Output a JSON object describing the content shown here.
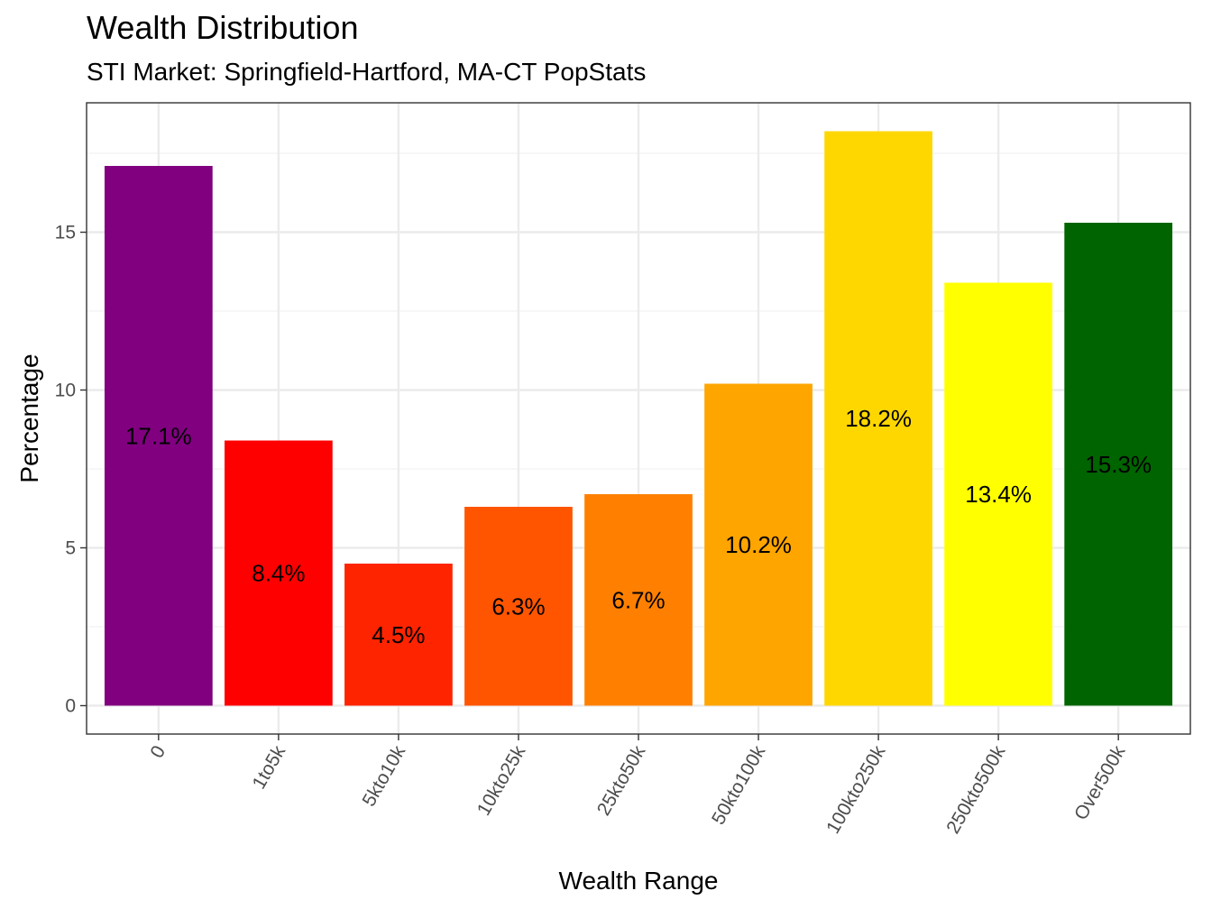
{
  "chart_data": {
    "type": "bar",
    "title": "Wealth Distribution",
    "subtitle": "STI Market: Springfield-Hartford, MA-CT PopStats",
    "xlabel": "Wealth Range",
    "ylabel": "Percentage",
    "categories": [
      "0",
      "1to5k",
      "5kto10k",
      "10kto25k",
      "25kto50k",
      "50kto100k",
      "100kto250k",
      "250kto500k",
      "Over500k"
    ],
    "values": [
      17.1,
      8.4,
      4.5,
      6.3,
      6.7,
      10.2,
      18.2,
      13.4,
      15.3
    ],
    "labels": [
      "17.1%",
      "8.4%",
      "4.5%",
      "6.3%",
      "6.7%",
      "10.2%",
      "18.2%",
      "13.4%",
      "15.3%"
    ],
    "colors": [
      "#800080",
      "#FF0000",
      "#FF2400",
      "#FF5500",
      "#FF8000",
      "#FFA500",
      "#FFD700",
      "#FFFF00",
      "#006400"
    ],
    "y_ticks": [
      0,
      5,
      10,
      15
    ],
    "ylim": [
      -0.9,
      19.1
    ],
    "grid": true,
    "legend": "none"
  }
}
